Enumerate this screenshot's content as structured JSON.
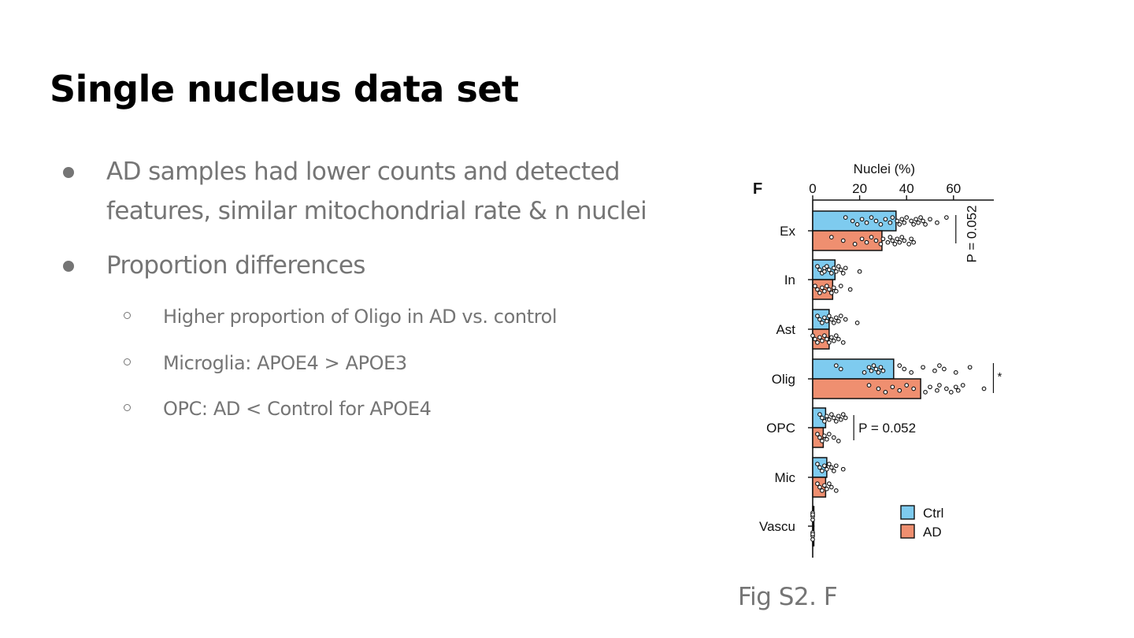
{
  "slide": {
    "title": "Single nucleus data set",
    "bullets": [
      {
        "lines": [
          "AD samples had lower counts and detected",
          "features, similar mitochondrial rate & n nuclei"
        ]
      },
      {
        "lines": [
          "Proportion differences"
        ]
      }
    ],
    "sub_bullets": [
      "Higher proportion of Oligo in AD vs. control",
      "Microglia: APOE4 > APOE3",
      "OPC: AD < Control for APOE4"
    ],
    "caption": "Fig S2. F"
  },
  "chart_data": {
    "type": "bar",
    "orientation": "horizontal",
    "panel_label": "F",
    "xlabel": "Nuclei (%)",
    "xlim": [
      0,
      78
    ],
    "xticks": [
      0,
      20,
      40,
      60
    ],
    "x_axis_position": "top",
    "categories": [
      "Ex",
      "In",
      "Ast",
      "Olig",
      "OPC",
      "Mic",
      "Vascu"
    ],
    "series": [
      {
        "name": "Ctrl",
        "color": "#7ecbef",
        "values": [
          35.5,
          9.5,
          7.0,
          34.5,
          5.5,
          6.0,
          0.5
        ]
      },
      {
        "name": "AD",
        "color": "#ef8f70",
        "values": [
          29.5,
          8.5,
          7.0,
          46.0,
          4.5,
          5.5,
          0.5
        ]
      }
    ],
    "points": {
      "Ctrl": [
        [
          14,
          17,
          19,
          21,
          23,
          25,
          27,
          29,
          31,
          33,
          34,
          36,
          37,
          38,
          39,
          40,
          42,
          43,
          44,
          45,
          46,
          47,
          48,
          50,
          53,
          57
        ],
        [
          2,
          3,
          4,
          5,
          5,
          6,
          7,
          8,
          9,
          10,
          11,
          12,
          13,
          14,
          20
        ],
        [
          2,
          3,
          4,
          5,
          6,
          7,
          8,
          9,
          10,
          11,
          12,
          14,
          19
        ],
        [
          10,
          12,
          22,
          24,
          25,
          26,
          27,
          28,
          29,
          30,
          37,
          39,
          42,
          47,
          52,
          54,
          56,
          61,
          67
        ],
        [
          3,
          4,
          5,
          6,
          7,
          8,
          9,
          10,
          11,
          12,
          13,
          14
        ],
        [
          2,
          3,
          4,
          5,
          6,
          7,
          8,
          9,
          10,
          13
        ],
        [
          0,
          0,
          0,
          0
        ]
      ],
      "AD": [
        [
          8,
          13,
          18,
          21,
          23,
          25,
          27,
          29,
          30,
          32,
          33,
          34,
          35,
          36,
          37,
          38,
          39,
          41,
          42,
          43
        ],
        [
          1,
          2,
          3,
          4,
          5,
          6,
          7,
          8,
          9,
          10,
          12,
          16
        ],
        [
          0,
          1,
          2,
          3,
          4,
          5,
          6,
          7,
          8,
          9,
          10,
          11,
          13
        ],
        [
          24,
          28,
          31,
          34,
          37,
          40,
          43,
          48,
          50,
          53,
          54,
          57,
          59,
          61,
          62,
          64,
          73
        ],
        [
          2,
          3,
          4,
          5,
          6,
          7,
          9,
          11
        ],
        [
          2,
          3,
          4,
          5,
          6,
          7,
          8,
          10
        ],
        [
          0,
          0,
          0,
          0
        ]
      ]
    },
    "annotations": [
      {
        "category": "Ex",
        "text": "P = 0.052",
        "orientation": "vertical"
      },
      {
        "category": "Olig",
        "text": "*"
      },
      {
        "category": "OPC",
        "text": "P = 0.052"
      }
    ],
    "legend": {
      "position": "bottom-right",
      "entries": [
        "Ctrl",
        "AD"
      ]
    },
    "grid": false
  }
}
